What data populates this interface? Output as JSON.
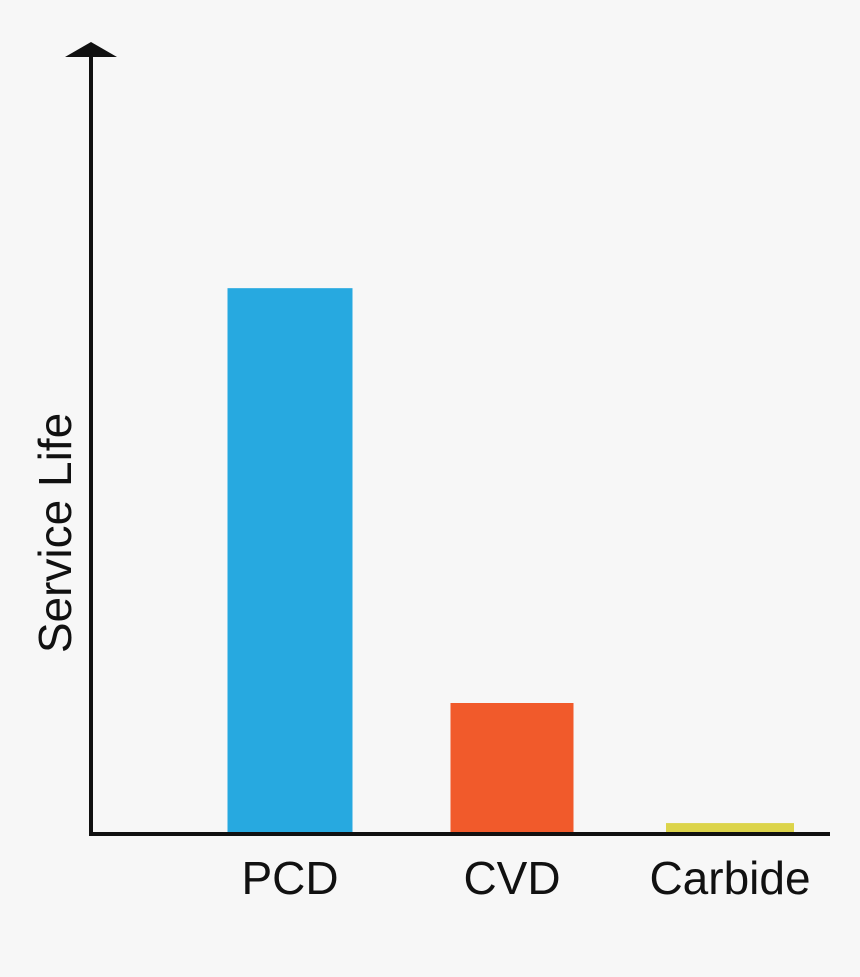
{
  "chart_data": {
    "type": "bar",
    "title": "",
    "xlabel": "",
    "ylabel": "Service Life",
    "categories": [
      "PCD",
      "CVD",
      "Carbide"
    ],
    "values": [
      100,
      24,
      2
    ],
    "ylim": [
      0,
      144
    ],
    "grid": false,
    "colors": {
      "PCD": "#27a9e0",
      "CVD": "#f15a2b",
      "Carbide": "#dcd44a"
    },
    "axis_color": "#111111",
    "background": "#f7f7f7"
  }
}
